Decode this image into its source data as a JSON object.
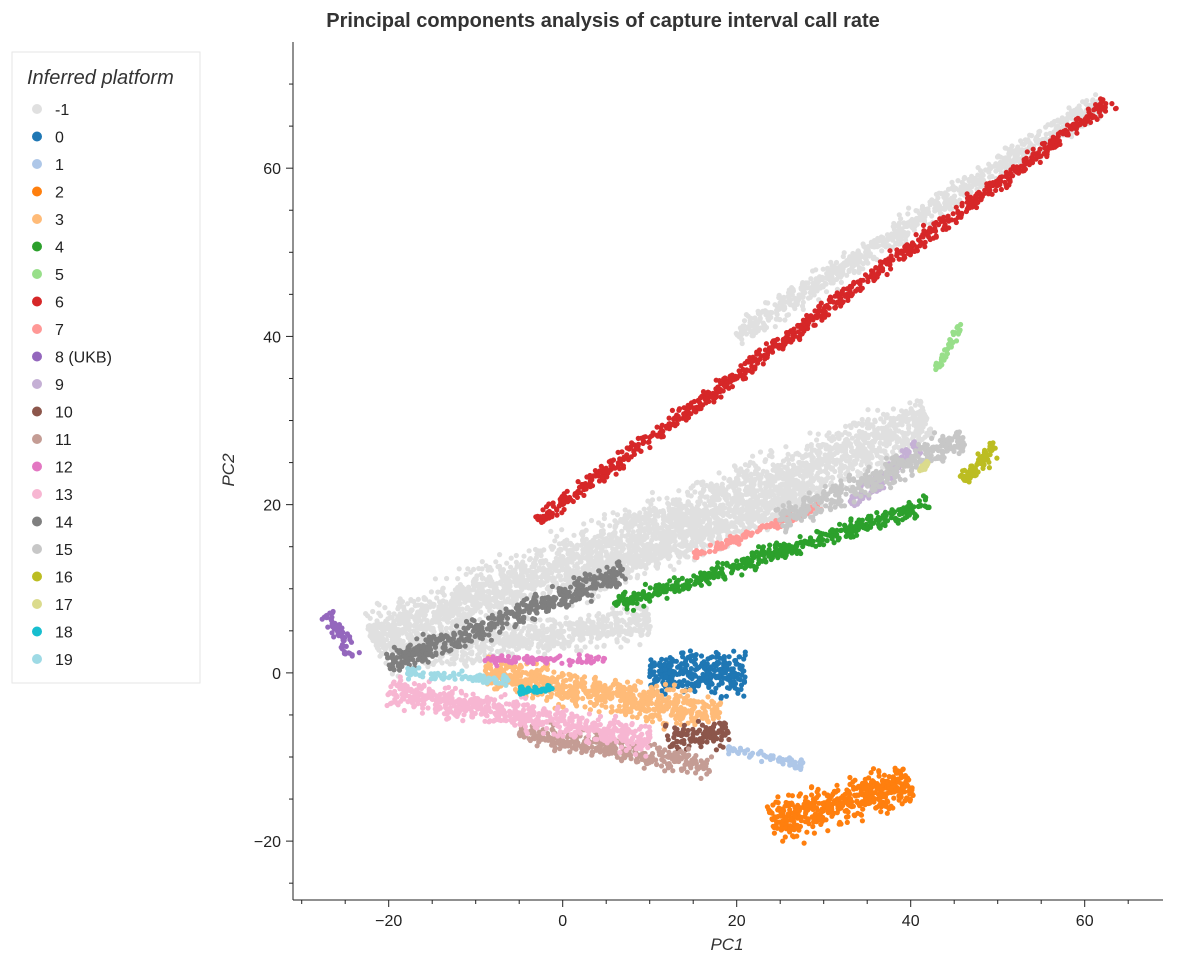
{
  "chart_data": {
    "type": "scatter",
    "title": "Principal components analysis of capture interval call rate",
    "xlabel": "PC1",
    "ylabel": "PC2",
    "xlim": [
      -31,
      69
    ],
    "ylim": [
      -27,
      75
    ],
    "xticks": [
      -20,
      0,
      20,
      40,
      60
    ],
    "yticks": [
      -20,
      0,
      20,
      40,
      60
    ],
    "xtick_labels": [
      "−20",
      "0",
      "20",
      "40",
      "60"
    ],
    "ytick_labels": [
      "−20",
      "0",
      "20",
      "40",
      "60"
    ],
    "grid": false,
    "legend": {
      "title": "Inferred platform",
      "placement": "left-outside",
      "entries": [
        "-1",
        "0",
        "1",
        "2",
        "3",
        "4",
        "5",
        "6",
        "7",
        "8 (UKB)",
        "9",
        "10",
        "11",
        "12",
        "13",
        "14",
        "15",
        "16",
        "17",
        "18",
        "19"
      ]
    },
    "series": [
      {
        "name": "-1",
        "color": "#e0e0e0",
        "approx_clusters": [
          {
            "from": [
              -22,
              4
            ],
            "to": [
              42,
              30
            ],
            "width": 4.5
          },
          {
            "from": [
              -20,
              2
            ],
            "to": [
              10,
              6
            ],
            "width": 3
          },
          {
            "from": [
              0,
              10
            ],
            "to": [
              30,
              22
            ],
            "width": 3
          },
          {
            "from": [
              20,
              40
            ],
            "to": [
              62,
              68
            ],
            "width": 2
          }
        ]
      },
      {
        "name": "0",
        "color": "#1f77b4",
        "approx_clusters": [
          {
            "from": [
              10,
              0
            ],
            "to": [
              21,
              0
            ],
            "width": 3.5
          }
        ]
      },
      {
        "name": "1",
        "color": "#aec7e8",
        "approx_clusters": [
          {
            "from": [
              19,
              -9
            ],
            "to": [
              28,
              -11
            ],
            "width": 0.8
          }
        ]
      },
      {
        "name": "2",
        "color": "#ff7f0e",
        "approx_clusters": [
          {
            "from": [
              24,
              -18
            ],
            "to": [
              40,
              -13
            ],
            "width": 3.5
          }
        ]
      },
      {
        "name": "3",
        "color": "#ffbb78",
        "approx_clusters": [
          {
            "from": [
              -9,
              0
            ],
            "to": [
              18,
              -5
            ],
            "width": 3
          }
        ]
      },
      {
        "name": "4",
        "color": "#2ca02c",
        "approx_clusters": [
          {
            "from": [
              6,
              8
            ],
            "to": [
              42,
              20
            ],
            "width": 1.5
          }
        ]
      },
      {
        "name": "5",
        "color": "#98df8a",
        "approx_clusters": [
          {
            "from": [
              43,
              36
            ],
            "to": [
              46,
              42
            ],
            "width": 0.8
          }
        ]
      },
      {
        "name": "6",
        "color": "#d62728",
        "approx_clusters": [
          {
            "from": [
              -3,
              18
            ],
            "to": [
              63,
              68
            ],
            "width": 1.3
          }
        ]
      },
      {
        "name": "7",
        "color": "#ff9896",
        "approx_clusters": [
          {
            "from": [
              15,
              14
            ],
            "to": [
              30,
              20
            ],
            "width": 0.9
          }
        ]
      },
      {
        "name": "8 (UKB)",
        "color": "#9467bd",
        "approx_clusters": [
          {
            "from": [
              -27,
              7
            ],
            "to": [
              -24,
              2
            ],
            "width": 1.2
          }
        ]
      },
      {
        "name": "9",
        "color": "#c5b0d5",
        "approx_clusters": [
          {
            "from": [
              33,
              20
            ],
            "to": [
              41,
              27
            ],
            "width": 1.3
          }
        ]
      },
      {
        "name": "10",
        "color": "#8c564b",
        "approx_clusters": [
          {
            "from": [
              12,
              -8
            ],
            "to": [
              19,
              -7
            ],
            "width": 2
          }
        ]
      },
      {
        "name": "11",
        "color": "#c49c94",
        "approx_clusters": [
          {
            "from": [
              -5,
              -7
            ],
            "to": [
              17,
              -11
            ],
            "width": 2
          }
        ]
      },
      {
        "name": "12",
        "color": "#e377c2",
        "approx_clusters": [
          {
            "from": [
              -9,
              1.5
            ],
            "to": [
              5,
              1.5
            ],
            "width": 0.8
          }
        ]
      },
      {
        "name": "13",
        "color": "#f7b6d2",
        "approx_clusters": [
          {
            "from": [
              -20,
              -2
            ],
            "to": [
              10,
              -8
            ],
            "width": 2.5
          }
        ]
      },
      {
        "name": "14",
        "color": "#7f7f7f",
        "approx_clusters": [
          {
            "from": [
              -20,
              1
            ],
            "to": [
              7,
              12
            ],
            "width": 2
          }
        ]
      },
      {
        "name": "15",
        "color": "#c7c7c7",
        "approx_clusters": [
          {
            "from": [
              25,
              18
            ],
            "to": [
              46,
              28
            ],
            "width": 2.2
          }
        ]
      },
      {
        "name": "16",
        "color": "#bcbd22",
        "approx_clusters": [
          {
            "from": [
              46,
              23
            ],
            "to": [
              50,
              27
            ],
            "width": 1.5
          }
        ]
      },
      {
        "name": "17",
        "color": "#dbdb8d",
        "approx_clusters": [
          {
            "from": [
              41,
              24
            ],
            "to": [
              42,
              25
            ],
            "width": 0.4
          }
        ]
      },
      {
        "name": "18",
        "color": "#17becf",
        "approx_clusters": [
          {
            "from": [
              -5,
              -2
            ],
            "to": [
              -1,
              -2
            ],
            "width": 0.7
          }
        ]
      },
      {
        "name": "19",
        "color": "#9edae5",
        "approx_clusters": [
          {
            "from": [
              -18,
              0
            ],
            "to": [
              -6,
              -1
            ],
            "width": 0.9
          }
        ]
      }
    ]
  }
}
